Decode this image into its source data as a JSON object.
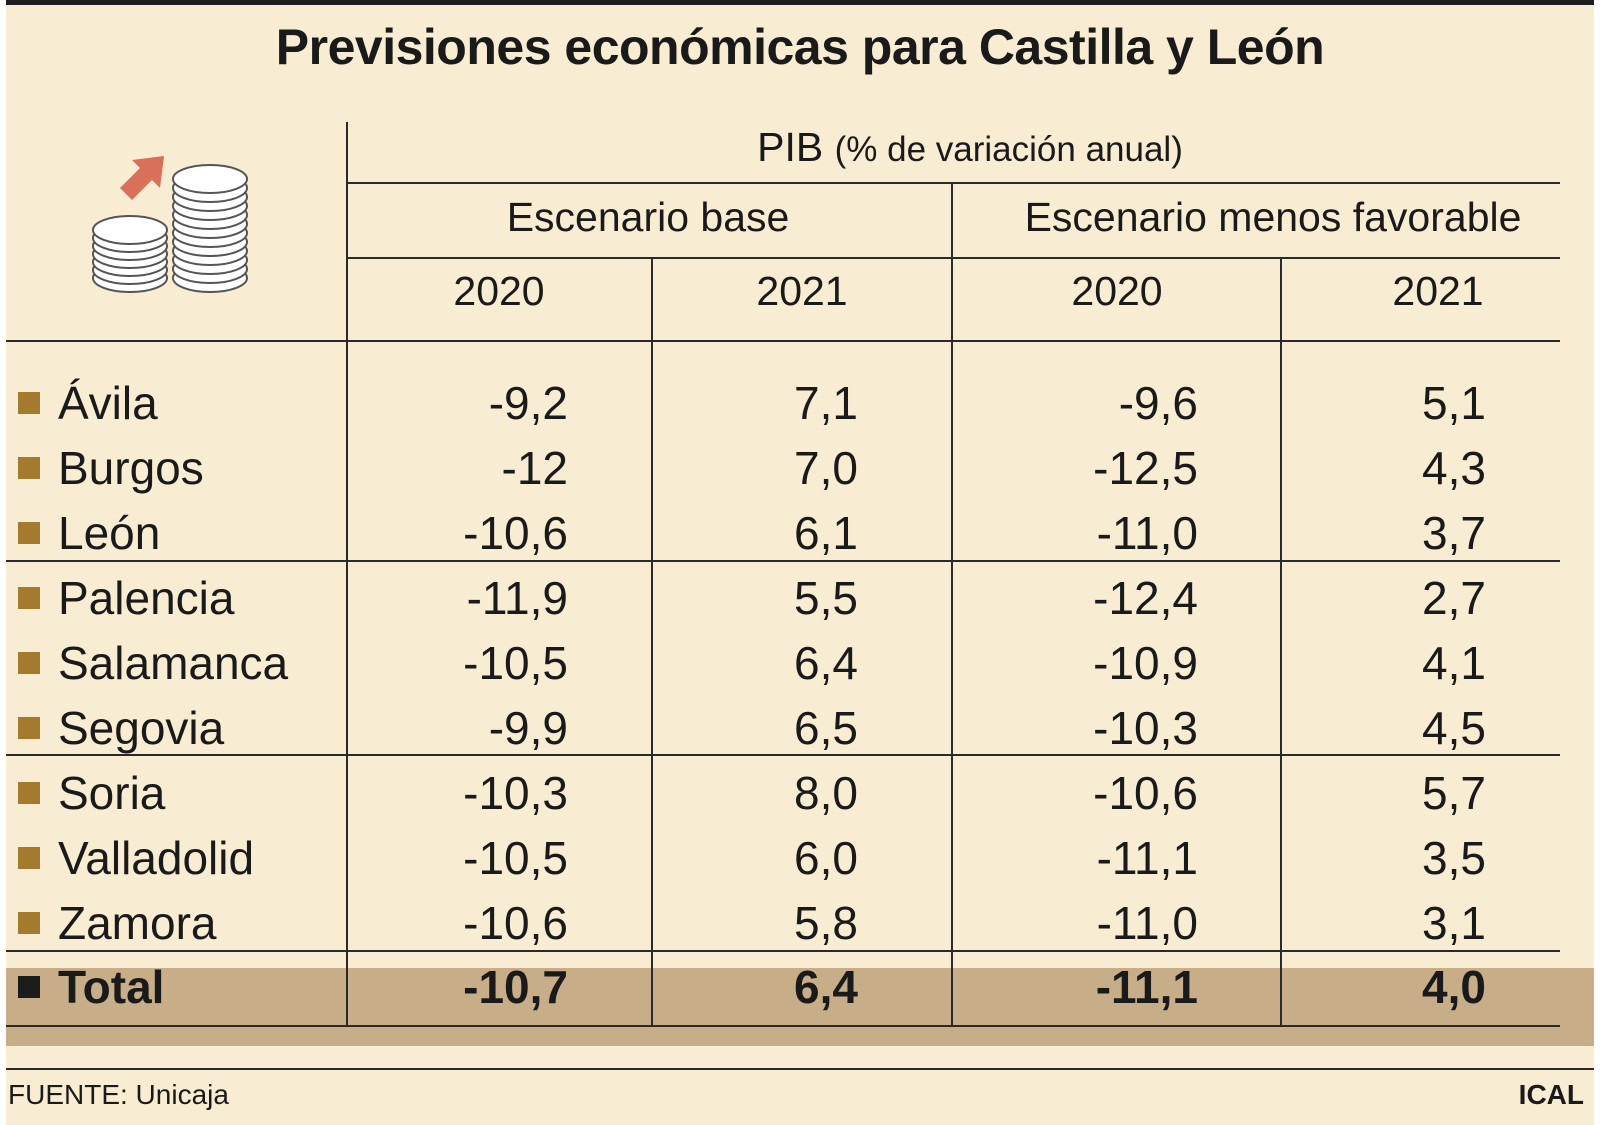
{
  "title": "Previsiones económicas para Castilla y León",
  "header": {
    "metric": "PIB",
    "metric_detail": "(% de variación anual)",
    "scenario_base": "Escenario base",
    "scenario_adverse": "Escenario menos favorable",
    "years": [
      "2020",
      "2021",
      "2020",
      "2021"
    ]
  },
  "rows": [
    {
      "province": "Ávila",
      "v": [
        "-9,2",
        "7,1",
        "-9,6",
        "5,1"
      ]
    },
    {
      "province": "Burgos",
      "v": [
        "-12",
        "7,0",
        "-12,5",
        "4,3"
      ]
    },
    {
      "province": "León",
      "v": [
        "-10,6",
        "6,1",
        "-11,0",
        "3,7"
      ]
    },
    {
      "province": "Palencia",
      "v": [
        "-11,9",
        "5,5",
        "-12,4",
        "2,7"
      ]
    },
    {
      "province": "Salamanca",
      "v": [
        "-10,5",
        "6,4",
        "-10,9",
        "4,1"
      ]
    },
    {
      "province": "Segovia",
      "v": [
        "-9,9",
        "6,5",
        "-10,3",
        "4,5"
      ]
    },
    {
      "province": "Soria",
      "v": [
        "-10,3",
        "8,0",
        "-10,6",
        "5,7"
      ]
    },
    {
      "province": "Valladolid",
      "v": [
        "-10,5",
        "6,0",
        "-11,1",
        "3,5"
      ]
    },
    {
      "province": "Zamora",
      "v": [
        "-10,6",
        "5,8",
        "-11,0",
        "3,1"
      ]
    }
  ],
  "total": {
    "label": "Total",
    "v": [
      "-10,7",
      "6,4",
      "-11,1",
      "4,0"
    ]
  },
  "footer": {
    "source": "FUENTE: Unicaja",
    "credit": "ICAL"
  },
  "colors": {
    "background": "#f8ecd2",
    "total_band": "#c7ae89",
    "bullet": "#a47a2e",
    "arrow": "#d8705a"
  },
  "icons": {
    "illustration": "coins-stack-arrow-icon"
  },
  "chart_data": {
    "type": "table",
    "title": "Previsiones económicas para Castilla y León",
    "subtitle": "PIB (% de variación anual)",
    "columns": [
      "Escenario base 2020",
      "Escenario base 2021",
      "Escenario menos favorable 2020",
      "Escenario menos favorable 2021"
    ],
    "categories": [
      "Ávila",
      "Burgos",
      "León",
      "Palencia",
      "Salamanca",
      "Segovia",
      "Soria",
      "Valladolid",
      "Zamora",
      "Total"
    ],
    "series": [
      {
        "name": "Escenario base 2020",
        "values": [
          -9.2,
          -12,
          -10.6,
          -11.9,
          -10.5,
          -9.9,
          -10.3,
          -10.5,
          -10.6,
          -10.7
        ]
      },
      {
        "name": "Escenario base 2021",
        "values": [
          7.1,
          7.0,
          6.1,
          5.5,
          6.4,
          6.5,
          8.0,
          6.0,
          5.8,
          6.4
        ]
      },
      {
        "name": "Escenario menos favorable 2020",
        "values": [
          -9.6,
          -12.5,
          -11.0,
          -12.4,
          -10.9,
          -10.3,
          -10.6,
          -11.1,
          -11.0,
          -11.1
        ]
      },
      {
        "name": "Escenario menos favorable 2021",
        "values": [
          5.1,
          4.3,
          3.7,
          2.7,
          4.1,
          4.5,
          5.7,
          3.5,
          3.1,
          4.0
        ]
      }
    ]
  }
}
